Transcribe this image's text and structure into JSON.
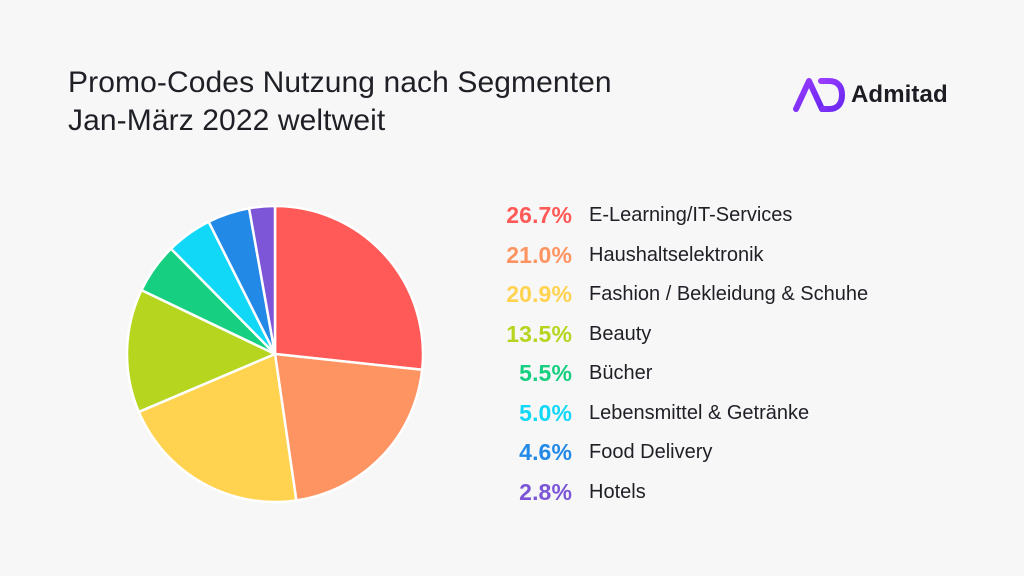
{
  "title": {
    "line1": "Promo-Codes Nutzung nach Segmenten",
    "line2": "Jan-März 2022 weltweit"
  },
  "logo": {
    "text": "Admitad",
    "icon": "admitad-logo-icon",
    "color": "#7b2ff7"
  },
  "chart_data": {
    "type": "pie",
    "title": "Promo-Codes Nutzung nach Segmenten Jan-März 2022 weltweit",
    "categories": [
      "E-Learning/IT-Services",
      "Haushaltselektronik",
      "Fashion / Bekleidung & Schuhe",
      "Beauty",
      "Bücher",
      "Lebensmittel & Getränke",
      "Food Delivery",
      "Hotels"
    ],
    "values": [
      26.7,
      21.0,
      20.9,
      13.5,
      5.5,
      5.0,
      4.6,
      2.8
    ],
    "value_labels": [
      "26.7%",
      "21.0%",
      "20.9%",
      "13.5%",
      "5.5%",
      "5.0%",
      "4.6%",
      "2.8%"
    ],
    "colors": [
      "#ff5a57",
      "#ff9463",
      "#ffd24f",
      "#b5d51f",
      "#16cf80",
      "#10d8f6",
      "#2389e6",
      "#7c56d6"
    ],
    "legend_position": "right",
    "grid": false
  }
}
